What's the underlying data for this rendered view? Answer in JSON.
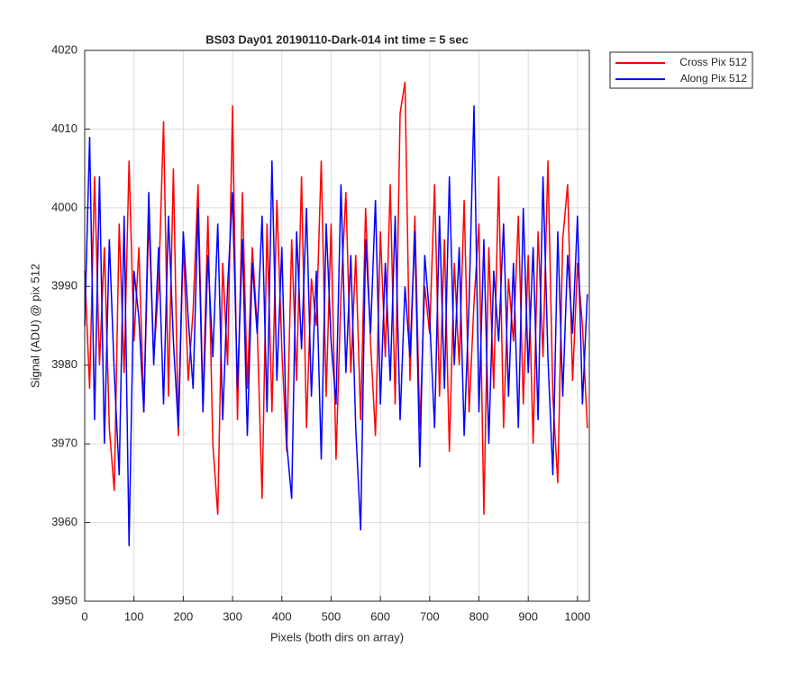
{
  "chart_data": {
    "type": "line",
    "title": "BS03 Day01 20190110-Dark-014 int time = 5 sec",
    "x_label": "Pixels (both dirs on array)",
    "y_label": "Signal (ADU) @ pix 512",
    "x": [
      0,
      10,
      20,
      30,
      40,
      50,
      60,
      70,
      80,
      90,
      100,
      110,
      120,
      130,
      140,
      150,
      160,
      170,
      180,
      190,
      200,
      210,
      220,
      230,
      240,
      250,
      260,
      270,
      280,
      290,
      300,
      310,
      320,
      330,
      340,
      350,
      360,
      370,
      380,
      390,
      400,
      410,
      420,
      430,
      440,
      450,
      460,
      470,
      480,
      490,
      500,
      510,
      520,
      530,
      540,
      550,
      560,
      570,
      580,
      590,
      600,
      610,
      620,
      630,
      640,
      650,
      660,
      670,
      680,
      690,
      700,
      710,
      720,
      730,
      740,
      750,
      760,
      770,
      780,
      790,
      800,
      810,
      820,
      830,
      840,
      850,
      860,
      870,
      880,
      890,
      900,
      910,
      920,
      930,
      940,
      950,
      960,
      970,
      980,
      990,
      1000,
      1010,
      1020
    ],
    "series": [
      {
        "name": "Cross Pix 512",
        "color": "#ff0000",
        "values": [
          3992,
          3977,
          4004,
          3980,
          3995,
          3972,
          3964,
          3998,
          3979,
          4006,
          3983,
          3995,
          3974,
          3999,
          3981,
          3990,
          4011,
          3976,
          4005,
          3971,
          3996,
          3978,
          3987,
          4003,
          3975,
          3999,
          3970,
          3961,
          3993,
          3980,
          4013,
          3973,
          4002,
          3977,
          3995,
          3985,
          3963,
          3998,
          3974,
          4001,
          3982,
          3969,
          3996,
          3978,
          4004,
          3972,
          3991,
          3985,
          4006,
          3976,
          3998,
          3968,
          3989,
          4002,
          3979,
          3994,
          3973,
          4000,
          3983,
          3971,
          3997,
          3981,
          4003,
          3975,
          4012,
          4016,
          3978,
          3999,
          3972,
          3990,
          3984,
          4003,
          3976,
          3996,
          3969,
          3993,
          3980,
          4001,
          3974,
          3988,
          3998,
          3961,
          3995,
          3977,
          4004,
          3972,
          3991,
          3983,
          3999,
          3975,
          3994,
          3970,
          3997,
          3981,
          4006,
          3976,
          3965,
          3996,
          4003,
          3978,
          3993,
          3985,
          3972
        ]
      },
      {
        "name": "Along Pix 512",
        "color": "#0000ff",
        "values": [
          3985,
          4009,
          3973,
          4004,
          3970,
          3996,
          3979,
          3966,
          3999,
          3957,
          3992,
          3986,
          3974,
          4002,
          3980,
          3995,
          3975,
          3999,
          3983,
          3972,
          3997,
          3986,
          3977,
          4000,
          3974,
          3994,
          3981,
          3998,
          3973,
          3990,
          4002,
          3977,
          3996,
          3971,
          3993,
          3984,
          3999,
          3974,
          4006,
          3978,
          3995,
          3970,
          3963,
          3997,
          3982,
          4000,
          3976,
          3992,
          3968,
          3998,
          3983,
          3975,
          4003,
          3979,
          3994,
          3972,
          3959,
          3996,
          3984,
          4001,
          3975,
          3993,
          3978,
          3999,
          3973,
          3990,
          3981,
          3997,
          3967,
          3994,
          3986,
          3972,
          3999,
          3977,
          4004,
          3980,
          3995,
          3971,
          3988,
          4013,
          3974,
          3996,
          3970,
          3992,
          3983,
          3998,
          3976,
          3993,
          3972,
          4000,
          3979,
          3995,
          3973,
          4004,
          3981,
          3966,
          3997,
          3976,
          3994,
          3984,
          3999,
          3975,
          3989
        ]
      }
    ],
    "xlim": [
      0,
      1024
    ],
    "ylim": [
      3950,
      4020
    ],
    "xticks": [
      0,
      100,
      200,
      300,
      400,
      500,
      600,
      700,
      800,
      900,
      1000
    ],
    "yticks": [
      3950,
      3960,
      3970,
      3980,
      3990,
      4000,
      4010,
      4020
    ],
    "grid": true,
    "legend": "outside top right"
  }
}
